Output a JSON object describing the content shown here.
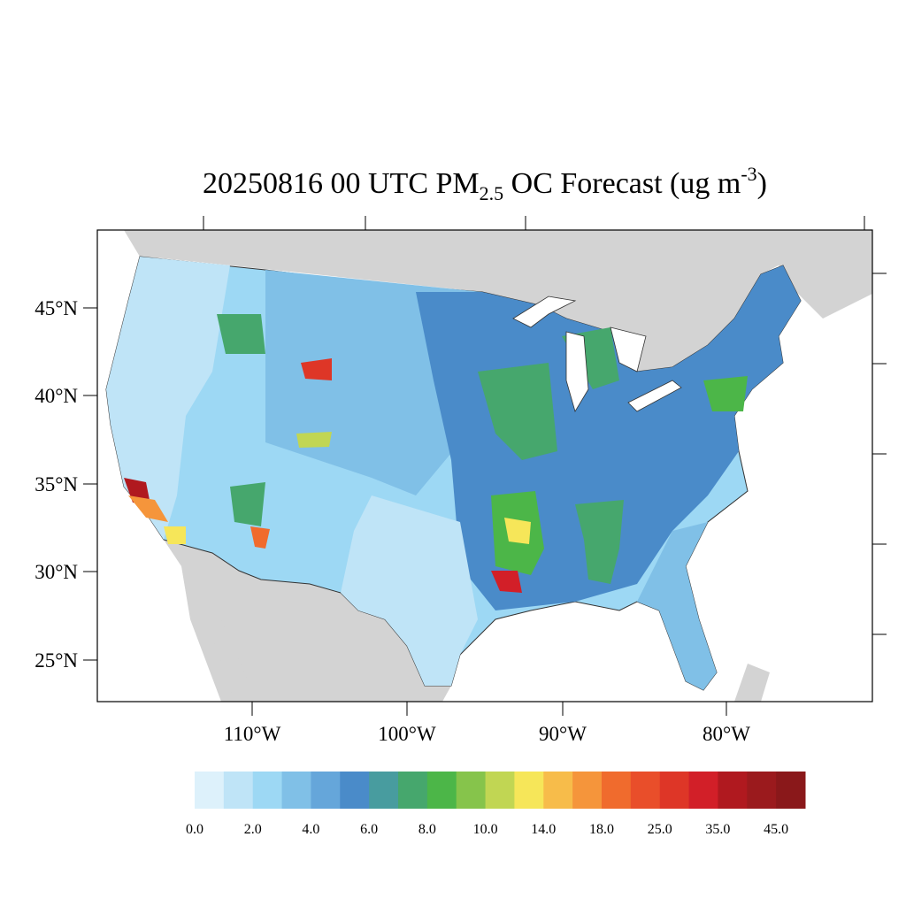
{
  "title": {
    "main": "20250816 00 UTC PM",
    "sub": "2.5",
    "middle": " OC Forecast (ug m",
    "sup": "-3",
    "end": ")"
  },
  "lat_labels": [
    "45°N",
    "40°N",
    "35°N",
    "30°N",
    "25°N"
  ],
  "lon_labels": [
    "110°W",
    "100°W",
    "90°W",
    "80°W"
  ],
  "legend": {
    "colors": [
      "#ddf1fb",
      "#bfe4f7",
      "#9dd8f4",
      "#80c0e7",
      "#65a6da",
      "#4a8bc9",
      "#489c9f",
      "#46a76d",
      "#4cb648",
      "#86c44b",
      "#c1d653",
      "#f6e659",
      "#f7bc4a",
      "#f5953b",
      "#f06b2d",
      "#e94e2a",
      "#de3627",
      "#d21f28",
      "#b0191f",
      "#9b1a1d",
      "#8a181a"
    ],
    "labels": [
      "0.0",
      "2.0",
      "4.0",
      "6.0",
      "8.0",
      "10.0",
      "14.0",
      "18.0",
      "25.0",
      "35.0",
      "45.0"
    ]
  }
}
